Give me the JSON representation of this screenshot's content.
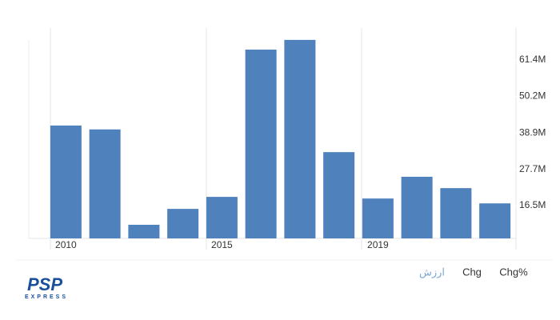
{
  "chart_data": {
    "type": "bar",
    "categories": [
      "2010",
      null,
      null,
      null,
      "2015",
      null,
      null,
      null,
      "2019",
      null,
      null,
      null
    ],
    "values": [
      41.2,
      40.0,
      10.6,
      15.5,
      19.2,
      64.6,
      67.6,
      33.0,
      18.7,
      25.4,
      21.9,
      17.2
    ],
    "color": "#4f81bd",
    "ylim": [
      6.4,
      68.8
    ],
    "yticks": [
      {
        "value": 16.5,
        "label": "16.5M"
      },
      {
        "value": 27.7,
        "label": "27.7M"
      },
      {
        "value": 38.9,
        "label": "38.9M"
      },
      {
        "value": 50.2,
        "label": "50.2M"
      },
      {
        "value": 61.4,
        "label": "61.4M"
      }
    ],
    "grid": false
  },
  "tabs": [
    "ارزش",
    "Chg",
    "Chg%"
  ],
  "logo": {
    "title": "PSP",
    "subtitle": "EXPRESS"
  }
}
